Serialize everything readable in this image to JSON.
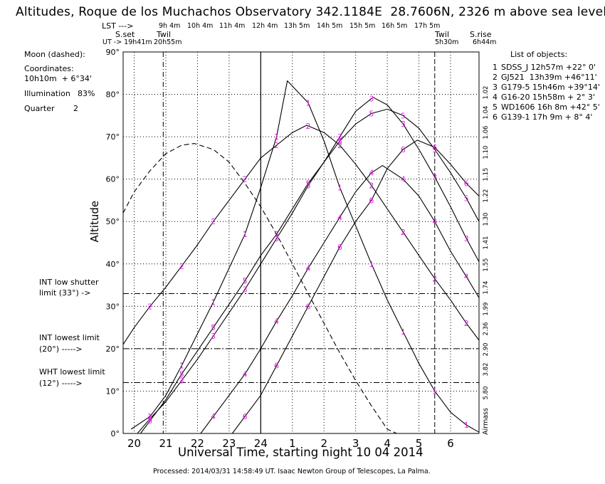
{
  "title": "Altitudes, Roque de los Muchachos Observatory 342.1184E  28.7606N, 2326 m above sea level",
  "header": {
    "lst_label": "LST --->",
    "ut_label": "UT -> 19h41m",
    "sset_label": "S.set",
    "twil_eve_label": "Twil",
    "twil_eve_time": "20h55m",
    "twil_morn_label": "Twil",
    "twil_morn_time": "5h30m",
    "srise_label": "S.rise",
    "srise_time": "6h44m",
    "lst_ticks": [
      "9h 4m",
      "10h 4m",
      "11h 4m",
      "12h 4m",
      "13h 5m",
      "14h 5m",
      "15h 5m",
      "16h 5m",
      "17h 5m"
    ]
  },
  "moon": {
    "title": "Moon (dashed):",
    "coord_label": "Coordinates:",
    "coord_value": "10h10m  + 6°34'",
    "illum_label": "Illumination",
    "illum_value": "83%",
    "quarter_label": "Quarter",
    "quarter_value": "2"
  },
  "limits": [
    {
      "label": "INT low shutter",
      "label2": "limit (33°) ->",
      "altitude": 33
    },
    {
      "label": "INT lowest limit",
      "label2": "(20°) ----->",
      "altitude": 20
    },
    {
      "label": "WHT lowest limit",
      "label2": "(12°) ----->",
      "altitude": 12
    }
  ],
  "objects_title": "List of objects:",
  "objects": [
    {
      "num": "1",
      "text": "SDSS_J 12h57m +22° 0'"
    },
    {
      "num": "2",
      "text": "GJ521  13h39m +46°11'"
    },
    {
      "num": "3",
      "text": "G179-5 15h46m +39°14'"
    },
    {
      "num": "4",
      "text": "G16-20 15h58m + 2° 3'"
    },
    {
      "num": "5",
      "text": "WD1606 16h 8m +42° 5'"
    },
    {
      "num": "6",
      "text": "G139-1 17h 9m + 8° 4'"
    }
  ],
  "xlabel": "Universal Time, starting night 10 04 2014",
  "ylabel": "Altitude",
  "airmass_label": "Airmass",
  "airmass_ticks": [
    "1.02",
    "1.04",
    "1.06",
    "1.10",
    "1.15",
    "1.22",
    "1.30",
    "1.41",
    "1.55",
    "1.74",
    "1.99",
    "2.36",
    "2.90",
    "3.82",
    "5.80"
  ],
  "footer": "Processed: 2014/03/31 14:58:49 UT. Isaac Newton Group of Telescopes, La Palma.",
  "colors": {
    "curve": "#000000",
    "marker": "#e020e0",
    "grid": "#000000"
  },
  "chart_data": {
    "type": "line",
    "xlabel": "Universal Time, starting night 10 04 2014",
    "ylabel": "Altitude",
    "xlim": [
      19.65,
      30.9
    ],
    "ylim": [
      0,
      90
    ],
    "x_ticks": [
      20,
      21,
      22,
      23,
      24,
      25,
      26,
      27,
      28,
      29,
      30
    ],
    "x_tick_labels": [
      "20",
      "21",
      "22",
      "23",
      "24",
      "1",
      "2",
      "3",
      "4",
      "5",
      "6"
    ],
    "y_ticks": [
      0,
      10,
      20,
      30,
      40,
      50,
      60,
      70,
      80,
      90
    ],
    "y_tick_labels": [
      "0°",
      "10°",
      "20°",
      "30°",
      "40°",
      "50°",
      "60°",
      "70°",
      "80°",
      "90°"
    ],
    "grid": true,
    "vlines": {
      "sunset": 19.683,
      "twilight_evening": 20.917,
      "midnight": 24.0,
      "twilight_morning": 29.5,
      "sunrise": 30.733
    },
    "series": [
      {
        "name": "1",
        "label_x": [
          20.5,
          21.5,
          22.5,
          23.5,
          24.5,
          25.5,
          26.5,
          27.5,
          28.5,
          29.5,
          30.5
        ],
        "transit": 24.84,
        "max_alt": 83.2,
        "rise": 19.9,
        "set": 31.0,
        "x": [
          19.9,
          20.5,
          21.0,
          21.5,
          22.0,
          22.5,
          23.0,
          23.5,
          24.0,
          24.5,
          24.84,
          25.5,
          26.0,
          26.5,
          27.0,
          27.5,
          28.0,
          28.5,
          29.0,
          29.5,
          30.0,
          30.5,
          30.9
        ],
        "y": [
          1,
          4,
          9,
          16,
          23.5,
          31,
          39,
          47,
          58,
          70,
          83.2,
          78,
          69,
          58,
          49,
          40,
          31.5,
          24,
          16.5,
          10,
          5,
          2,
          0.3
        ]
      },
      {
        "name": "2",
        "transit": 25.45,
        "max_alt": 72.7,
        "x": [
          19.65,
          20.0,
          20.5,
          21.0,
          21.5,
          22.0,
          22.5,
          23.0,
          23.5,
          24.0,
          24.5,
          25.0,
          25.45,
          26.0,
          26.5,
          27.0,
          27.5,
          28.0,
          28.5,
          29.0,
          29.5,
          30.0,
          30.5,
          30.9
        ],
        "y": [
          21,
          25,
          30,
          34.5,
          39.5,
          44.5,
          50,
          55,
          60,
          65,
          68,
          71,
          72.7,
          71,
          68,
          63.5,
          58.5,
          53,
          47.5,
          42,
          36.5,
          31.5,
          26,
          22
        ]
      },
      {
        "name": "3",
        "transit": 27.55,
        "max_alt": 79.3,
        "x": [
          20.1,
          20.5,
          21.0,
          21.5,
          22.0,
          22.5,
          23.0,
          23.5,
          24.0,
          24.5,
          25.0,
          25.5,
          26.0,
          26.5,
          27.0,
          27.55,
          28.0,
          28.5,
          29.0,
          29.5,
          30.0,
          30.5,
          30.9
        ],
        "y": [
          0,
          3.5,
          7.5,
          12.5,
          17.5,
          23,
          28.5,
          34,
          40,
          46,
          52,
          58.5,
          64,
          70,
          76,
          79.3,
          77.5,
          73,
          67,
          60.5,
          53.5,
          46,
          40.5
        ]
      },
      {
        "name": "4",
        "transit": 27.85,
        "max_alt": 63.2,
        "x": [
          22.1,
          22.5,
          23.0,
          23.5,
          24.0,
          24.5,
          25.0,
          25.5,
          26.0,
          26.5,
          27.0,
          27.5,
          27.85,
          28.5,
          29.0,
          29.5,
          30.0,
          30.5,
          30.9
        ],
        "y": [
          0,
          4,
          9,
          14,
          20,
          26.5,
          32.5,
          39,
          45,
          51,
          57,
          61.5,
          63.2,
          60,
          56,
          50,
          43,
          37,
          32
        ]
      },
      {
        "name": "5",
        "transit": 28.0,
        "max_alt": 76.5,
        "x": [
          20.2,
          20.5,
          21.0,
          21.5,
          22.0,
          22.5,
          23.0,
          23.5,
          24.0,
          24.5,
          25.0,
          25.5,
          26.0,
          26.5,
          27.0,
          27.5,
          28.0,
          28.5,
          29.0,
          29.5,
          30.0,
          30.5,
          30.9
        ],
        "y": [
          0,
          3,
          8,
          14,
          19.5,
          25,
          30.5,
          36,
          42,
          47,
          53,
          59,
          64,
          69,
          73,
          75.5,
          76.5,
          75,
          72,
          67,
          61.5,
          55.5,
          50
        ]
      },
      {
        "name": "6",
        "transit": 28.95,
        "max_alt": 69.2,
        "x": [
          23.1,
          23.5,
          24.0,
          24.5,
          25.0,
          25.5,
          26.0,
          26.5,
          27.0,
          27.5,
          28.0,
          28.5,
          28.95,
          29.5,
          30.0,
          30.5,
          30.9
        ],
        "y": [
          0,
          4,
          9,
          16,
          23,
          30,
          37,
          44,
          50,
          55,
          62.5,
          67,
          69.2,
          67.5,
          63.5,
          59,
          56
        ]
      },
      {
        "name": "Moon",
        "dashed": true,
        "transit": 21.9,
        "max_alt": 68.4,
        "x": [
          19.65,
          20.0,
          20.5,
          21.0,
          21.5,
          21.9,
          22.5,
          23.0,
          23.5,
          24.0,
          24.5,
          25.0,
          25.5,
          26.0,
          26.5,
          27.0,
          27.5,
          28.0,
          28.3
        ],
        "y": [
          52,
          57,
          62,
          66,
          68,
          68.4,
          67,
          64,
          59,
          53.5,
          47,
          40,
          33,
          26,
          19,
          12.5,
          6.5,
          1,
          0
        ]
      }
    ],
    "markers": [
      {
        "series": "1",
        "points": [
          [
            20.5,
            4
          ],
          [
            21.5,
            16
          ],
          [
            22.5,
            31
          ],
          [
            23.5,
            47
          ],
          [
            24.5,
            70
          ],
          [
            25.5,
            78
          ],
          [
            26.5,
            58
          ],
          [
            27.5,
            40
          ],
          [
            28.5,
            24
          ],
          [
            29.5,
            10
          ],
          [
            30.5,
            2
          ]
        ]
      },
      {
        "series": "2",
        "points": [
          [
            20.5,
            30
          ],
          [
            21.5,
            39.5
          ],
          [
            22.5,
            50
          ],
          [
            23.5,
            60
          ],
          [
            24.5,
            68
          ],
          [
            25.5,
            72.5
          ],
          [
            26.5,
            68
          ],
          [
            27.5,
            58.5
          ],
          [
            28.5,
            47.5
          ],
          [
            29.5,
            36.5
          ],
          [
            30.5,
            26
          ]
        ]
      },
      {
        "series": "3",
        "points": [
          [
            20.5,
            3.5
          ],
          [
            21.5,
            12.5
          ],
          [
            22.5,
            23
          ],
          [
            23.5,
            34
          ],
          [
            24.5,
            46
          ],
          [
            25.5,
            58.5
          ],
          [
            26.5,
            70
          ],
          [
            27.5,
            79
          ],
          [
            28.5,
            73
          ],
          [
            29.5,
            60.5
          ],
          [
            30.5,
            46
          ]
        ]
      },
      {
        "series": "4",
        "points": [
          [
            22.5,
            4
          ],
          [
            23.5,
            14
          ],
          [
            24.5,
            26.5
          ],
          [
            25.5,
            39
          ],
          [
            26.5,
            51
          ],
          [
            27.5,
            61.5
          ],
          [
            28.5,
            60
          ],
          [
            29.5,
            50
          ],
          [
            30.5,
            37
          ]
        ]
      },
      {
        "series": "5",
        "points": [
          [
            20.5,
            3
          ],
          [
            21.5,
            14
          ],
          [
            22.5,
            25
          ],
          [
            23.5,
            36
          ],
          [
            24.5,
            47
          ],
          [
            25.5,
            59
          ],
          [
            26.5,
            69
          ],
          [
            27.5,
            75.5
          ],
          [
            28.5,
            75
          ],
          [
            29.5,
            67
          ],
          [
            30.5,
            55.5
          ]
        ]
      },
      {
        "series": "6",
        "points": [
          [
            23.5,
            4
          ],
          [
            24.5,
            16
          ],
          [
            25.5,
            30
          ],
          [
            26.5,
            44
          ],
          [
            27.5,
            55
          ],
          [
            28.5,
            67
          ],
          [
            29.5,
            67.5
          ],
          [
            30.5,
            59
          ]
        ]
      }
    ]
  }
}
